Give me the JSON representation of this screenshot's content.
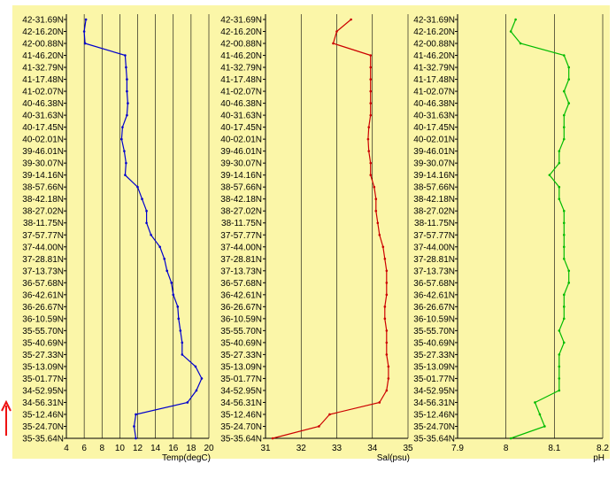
{
  "latitude_labels": [
    "42-31.69N",
    "42-16.20N",
    "42-00.88N",
    "41-46.20N",
    "41-32.79N",
    "41-17.48N",
    "41-02.07N",
    "40-46.38N",
    "40-31.63N",
    "40-17.45N",
    "40-02.01N",
    "39-46.01N",
    "39-30.07N",
    "39-14.16N",
    "38-57.66N",
    "38-42.18N",
    "38-27.02N",
    "38-11.75N",
    "37-57.77N",
    "37-44.00N",
    "37-28.81N",
    "37-13.73N",
    "36-57.68N",
    "36-42.61N",
    "36-26.67N",
    "36-10.59N",
    "35-55.70N",
    "35-40.69N",
    "35-27.33N",
    "35-13.09N",
    "35-01.77N",
    "34-52.95N",
    "34-56.31N",
    "35-12.46N",
    "35-24.70N",
    "35-35.64N"
  ],
  "colors": {
    "panel_bg": "#fbf6a8",
    "axis": "#000000",
    "grid": "#000000",
    "temp": "#0000cc",
    "sal": "#cc0000",
    "ph": "#00bb00",
    "arrow": "#ee1111"
  },
  "arrow_icon": "up-arrow-icon",
  "chart_data": [
    {
      "type": "line",
      "xlabel": "Temp(degC)",
      "xlim": [
        4,
        20
      ],
      "xticks": [
        4,
        6,
        8,
        10,
        12,
        14,
        16,
        18,
        20
      ],
      "x_tick_labels": [
        "4",
        "6",
        "8",
        "10",
        "12",
        "14",
        "16",
        "18",
        "20"
      ],
      "y": [
        "42-31.69N",
        "42-16.20N",
        "42-00.88N",
        "41-46.20N",
        "41-32.79N",
        "41-17.48N",
        "41-02.07N",
        "40-46.38N",
        "40-31.63N",
        "40-17.45N",
        "40-02.01N",
        "39-46.01N",
        "39-30.07N",
        "39-14.16N",
        "38-57.66N",
        "38-42.18N",
        "38-27.02N",
        "38-11.75N",
        "37-57.77N",
        "37-44.00N",
        "37-28.81N",
        "37-13.73N",
        "36-57.68N",
        "36-42.61N",
        "36-26.67N",
        "36-10.59N",
        "35-55.70N",
        "35-40.69N",
        "35-27.33N",
        "35-13.09N",
        "35-01.77N",
        "34-52.95N",
        "34-56.31N",
        "35-12.46N",
        "35-24.70N",
        "35-35.64N"
      ],
      "values": [
        6.2,
        6.0,
        6.1,
        10.6,
        10.7,
        10.8,
        10.8,
        10.9,
        10.8,
        10.3,
        10.2,
        10.5,
        10.7,
        10.6,
        12.0,
        12.5,
        13.0,
        13.0,
        13.5,
        14.5,
        15.0,
        15.3,
        15.8,
        16.0,
        16.5,
        16.6,
        16.8,
        17.0,
        17.0,
        18.5,
        19.2,
        18.6,
        17.6,
        11.8,
        11.6,
        11.8
      ],
      "grid": true
    },
    {
      "type": "line",
      "xlabel": "Sal(psu)",
      "xlim": [
        31,
        35
      ],
      "xticks": [
        31,
        32,
        33,
        34,
        35
      ],
      "x_tick_labels": [
        "31",
        "32",
        "33",
        "34",
        "35"
      ],
      "y": [
        "42-31.69N",
        "42-16.20N",
        "42-00.88N",
        "41-46.20N",
        "41-32.79N",
        "41-17.48N",
        "41-02.07N",
        "40-46.38N",
        "40-31.63N",
        "40-17.45N",
        "40-02.01N",
        "39-46.01N",
        "39-30.07N",
        "39-14.16N",
        "38-57.66N",
        "38-42.18N",
        "38-27.02N",
        "38-11.75N",
        "37-57.77N",
        "37-44.00N",
        "37-28.81N",
        "37-13.73N",
        "36-57.68N",
        "36-42.61N",
        "36-26.67N",
        "36-10.59N",
        "35-55.70N",
        "35-40.69N",
        "35-27.33N",
        "35-13.09N",
        "35-01.77N",
        "34-52.95N",
        "34-56.31N",
        "35-12.46N",
        "35-24.70N",
        "35-35.64N"
      ],
      "values": [
        33.4,
        33.0,
        32.9,
        33.95,
        33.95,
        33.95,
        33.95,
        33.95,
        33.95,
        33.9,
        33.88,
        33.9,
        33.95,
        33.95,
        34.05,
        34.1,
        34.1,
        34.15,
        34.2,
        34.3,
        34.35,
        34.4,
        34.4,
        34.4,
        34.35,
        34.35,
        34.4,
        34.4,
        34.4,
        34.45,
        34.45,
        34.4,
        34.2,
        32.8,
        32.5,
        31.2
      ],
      "grid": true
    },
    {
      "type": "line",
      "xlabel": "pH",
      "xlim": [
        7.9,
        8.2
      ],
      "xticks": [
        7.9,
        8,
        8.1,
        8.2
      ],
      "x_tick_labels": [
        "7.9",
        "8",
        "8.1",
        "8.2"
      ],
      "y": [
        "42-31.69N",
        "42-16.20N",
        "42-00.88N",
        "41-46.20N",
        "41-32.79N",
        "41-17.48N",
        "41-02.07N",
        "40-46.38N",
        "40-31.63N",
        "40-17.45N",
        "40-02.01N",
        "39-46.01N",
        "39-30.07N",
        "39-14.16N",
        "38-57.66N",
        "38-42.18N",
        "38-27.02N",
        "38-11.75N",
        "37-57.77N",
        "37-44.00N",
        "37-28.81N",
        "37-13.73N",
        "36-57.68N",
        "36-42.61N",
        "36-26.67N",
        "36-10.59N",
        "35-55.70N",
        "35-40.69N",
        "35-27.33N",
        "35-13.09N",
        "35-01.77N",
        "34-52.95N",
        "34-56.31N",
        "35-12.46N",
        "35-24.70N",
        "35-35.64N"
      ],
      "values": [
        8.02,
        8.01,
        8.03,
        8.12,
        8.13,
        8.13,
        8.12,
        8.13,
        8.12,
        8.12,
        8.12,
        8.11,
        8.11,
        8.09,
        8.11,
        8.11,
        8.12,
        8.12,
        8.12,
        8.12,
        8.12,
        8.13,
        8.13,
        8.12,
        8.12,
        8.12,
        8.11,
        8.12,
        8.11,
        8.11,
        8.11,
        8.11,
        8.06,
        8.07,
        8.08,
        8.01
      ],
      "grid": true
    }
  ]
}
